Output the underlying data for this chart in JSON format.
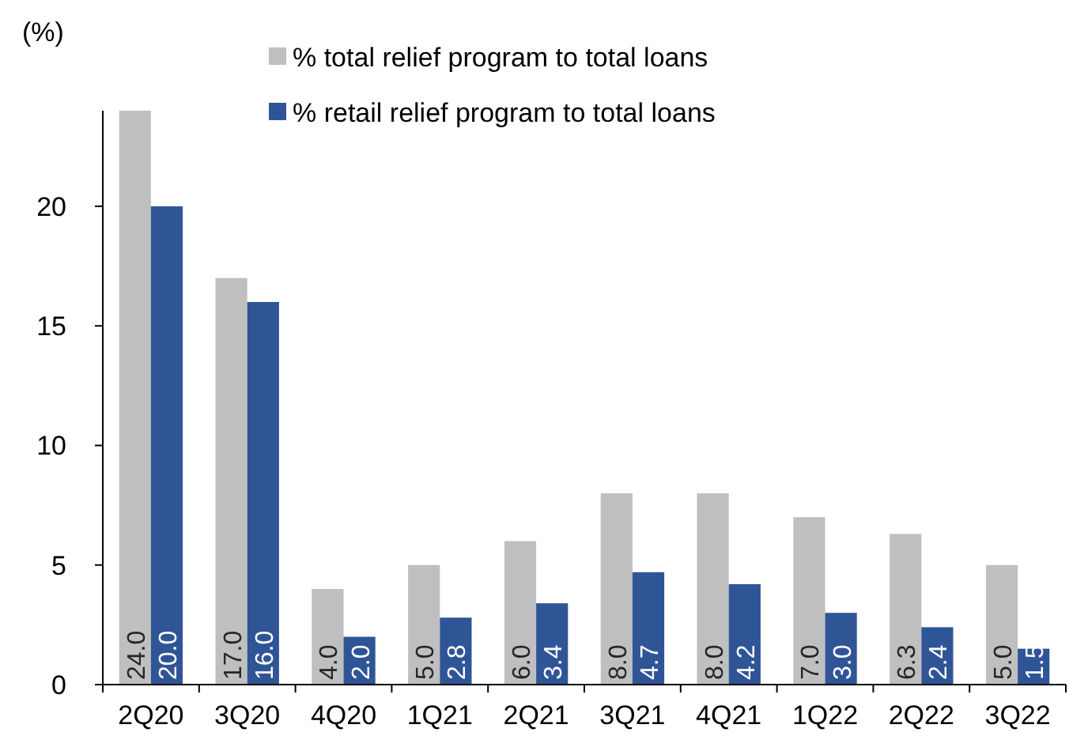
{
  "chart_data": {
    "type": "bar",
    "ylabel": "(%)",
    "categories": [
      "2Q20",
      "3Q20",
      "4Q20",
      "1Q21",
      "2Q21",
      "3Q21",
      "4Q21",
      "1Q22",
      "2Q22",
      "3Q22"
    ],
    "series": [
      {
        "name": "% total relief program to total loans",
        "color": "#bfbfbf",
        "values": [
          24.0,
          17.0,
          4.0,
          5.0,
          6.0,
          8.0,
          8.0,
          7.0,
          6.3,
          5.0
        ],
        "value_labels": [
          "24.0",
          "17.0",
          "4.0",
          "5.0",
          "6.0",
          "8.0",
          "8.0",
          "7.0",
          "6.3",
          "5.0"
        ]
      },
      {
        "name": "% retail relief program to total loans",
        "color": "#2f5597",
        "values": [
          20.0,
          16.0,
          2.0,
          2.8,
          3.4,
          4.7,
          4.2,
          3.0,
          2.4,
          1.5
        ],
        "value_labels": [
          "20.0",
          "16.0",
          "2.0",
          "2.8",
          "3.4",
          "4.7",
          "4.2",
          "3.0",
          "2.4",
          "1.5"
        ]
      }
    ],
    "ylim": [
      0,
      24
    ],
    "yticks": [
      0,
      5,
      10,
      15,
      20
    ],
    "grid": false,
    "legend": "top"
  }
}
